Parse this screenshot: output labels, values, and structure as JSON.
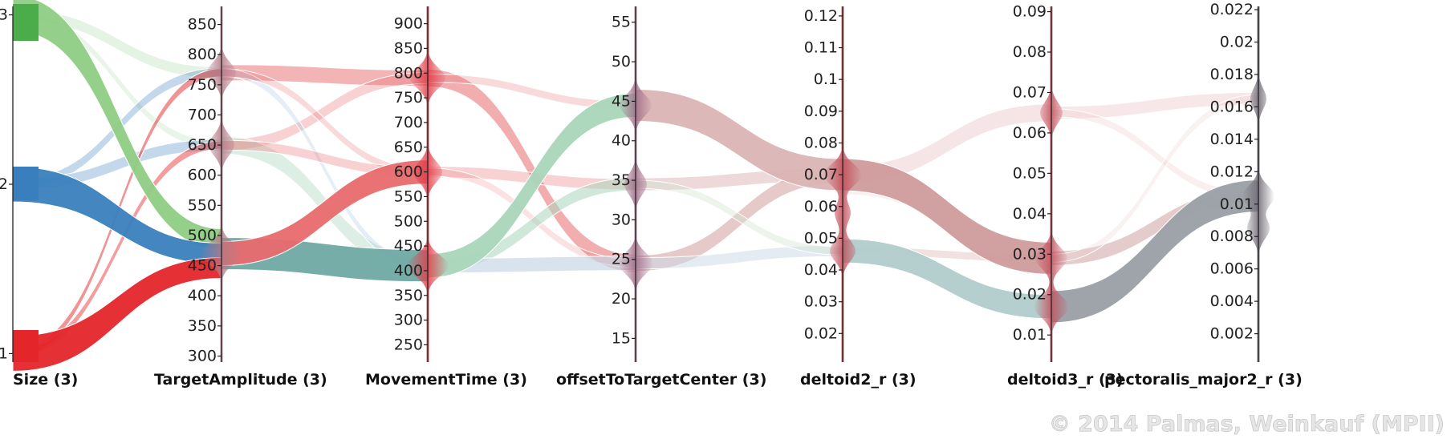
{
  "chart_data": {
    "type": "parallel_sets",
    "axes": [
      {
        "name": "Size (3)",
        "ticks": [
          "1",
          "2",
          "3"
        ]
      },
      {
        "name": "TargetAmplitude (3)",
        "ticks": [
          "300",
          "350",
          "400",
          "450",
          "500",
          "550",
          "600",
          "650",
          "700",
          "750",
          "800",
          "850"
        ]
      },
      {
        "name": "MovementTime (3)",
        "ticks": [
          "250",
          "300",
          "350",
          "400",
          "450",
          "500",
          "550",
          "600",
          "650",
          "700",
          "750",
          "800",
          "850",
          "900"
        ]
      },
      {
        "name": "offsetToTargetCenter (3)",
        "ticks": [
          "15",
          "20",
          "25",
          "30",
          "35",
          "40",
          "45",
          "50",
          "55"
        ]
      },
      {
        "name": "deltoid2_r (3)",
        "ticks": [
          "0.02",
          "0.03",
          "0.04",
          "0.05",
          "0.06",
          "0.07",
          "0.08",
          "0.09",
          "0.1",
          "0.11",
          "0.12"
        ]
      },
      {
        "name": "deltoid3_r (3)",
        "ticks": [
          "0.01",
          "0.02",
          "0.03",
          "0.04",
          "0.05",
          "0.06",
          "0.07",
          "0.08",
          "0.09"
        ]
      },
      {
        "name": "pectoralis_major2_r (3)",
        "ticks": [
          "0.002",
          "0.004",
          "0.006",
          "0.008",
          "0.01",
          "0.012",
          "0.014",
          "0.016",
          "0.018",
          "0.02",
          "0.022"
        ]
      }
    ],
    "categories": {
      "Size": [
        1,
        2,
        3
      ],
      "TargetAmplitude": [
        470,
        650,
        770
      ],
      "MovementTime": [
        410,
        600,
        790
      ],
      "offsetToTargetCenter": [
        24.5,
        34.5,
        44.5
      ],
      "deltoid2_r": [
        0.046,
        0.065,
        0.07
      ],
      "deltoid3_r": [
        0.017,
        0.029,
        0.065
      ],
      "pectoralis_major2_r": [
        0.0085,
        0.0105,
        0.0165
      ]
    },
    "size_colors": {
      "1": "#e4262a",
      "2": "#3a7fbd",
      "3": "#4aad4a"
    },
    "flows": [
      {
        "segment": "Size-TargetAmplitude",
        "from": 3,
        "to": 470,
        "color": "#8fce85",
        "share": "large"
      },
      {
        "segment": "Size-TargetAmplitude",
        "from": 2,
        "to": 470,
        "color": "#3a7fbd",
        "share": "large"
      },
      {
        "segment": "Size-TargetAmplitude",
        "from": 1,
        "to": 470,
        "color": "#e4262a",
        "share": "large"
      },
      {
        "segment": "TargetAmplitude-MovementTime",
        "from": 470,
        "to": 410,
        "color": "#6fa9a3",
        "share": "large"
      },
      {
        "segment": "TargetAmplitude-MovementTime",
        "from": 470,
        "to": 600,
        "color": "#e86a6e",
        "share": "medium"
      },
      {
        "segment": "MovementTime-offsetToTargetCenter",
        "from": 410,
        "to": 44.5,
        "color": "#a9d6bb",
        "share": "medium"
      },
      {
        "segment": "offsetToTargetCenter-deltoid2_r",
        "from": 44.5,
        "to": 0.07,
        "color": "#dbb4b4",
        "share": "large"
      },
      {
        "segment": "deltoid2_r-deltoid3_r",
        "from": 0.07,
        "to": 0.029,
        "color": "#cf9b9c",
        "share": "large"
      },
      {
        "segment": "deltoid2_r-deltoid3_r",
        "from": 0.046,
        "to": 0.017,
        "color": "#b0cccb",
        "share": "medium"
      },
      {
        "segment": "deltoid3_r-pectoralis_major2_r",
        "from": 0.017,
        "to": 0.0105,
        "color": "#9a9fa6",
        "share": "large"
      }
    ]
  },
  "copyright": "© 2014 Palmas, Weinkauf (MPII)"
}
